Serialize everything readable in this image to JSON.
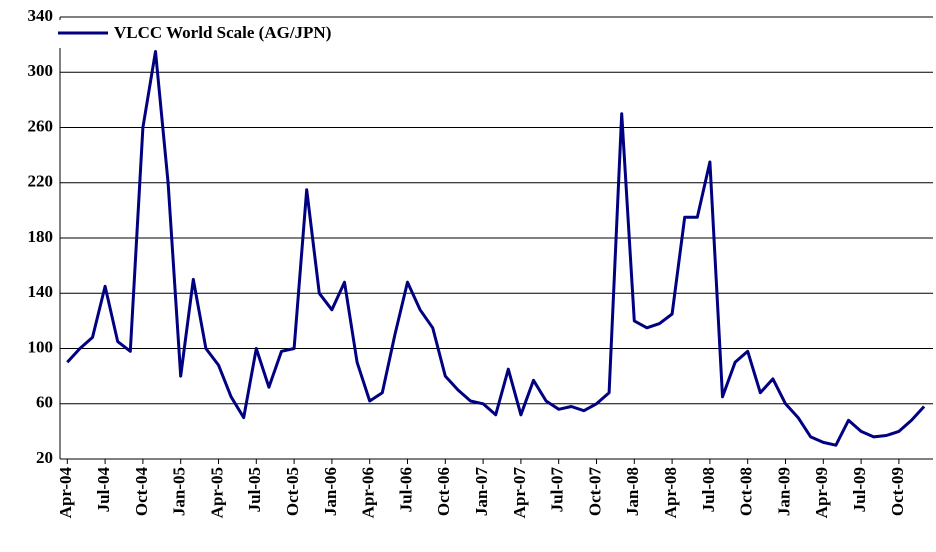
{
  "chart_data": {
    "type": "line",
    "categories": [
      "Apr-04",
      null,
      null,
      "Jul-04",
      null,
      null,
      "Oct-04",
      null,
      null,
      "Jan-05",
      null,
      null,
      "Apr-05",
      null,
      null,
      "Jul-05",
      null,
      null,
      "Oct-05",
      null,
      null,
      "Jan-06",
      null,
      null,
      "Apr-06",
      null,
      null,
      "Jul-06",
      null,
      null,
      "Oct-06",
      null,
      null,
      "Jan-07",
      null,
      null,
      "Apr-07",
      null,
      null,
      "Jul-07",
      null,
      null,
      "Oct-07",
      null,
      null,
      "Jan-08",
      null,
      null,
      "Apr-08",
      null,
      null,
      "Jul-08",
      null,
      null,
      "Oct-08",
      null,
      null,
      "Jan-09",
      null,
      null,
      "Apr-09",
      null,
      null,
      "Jul-09",
      null,
      null,
      "Oct-09",
      null,
      null
    ],
    "series": [
      {
        "name": "VLCC World Scale (AG/JPN)",
        "color": "#000080",
        "values": [
          90,
          100,
          108,
          145,
          105,
          98,
          260,
          315,
          220,
          80,
          150,
          100,
          88,
          65,
          50,
          100,
          72,
          98,
          100,
          215,
          140,
          128,
          148,
          90,
          62,
          68,
          110,
          148,
          128,
          115,
          80,
          70,
          62,
          60,
          52,
          85,
          52,
          77,
          62,
          56,
          58,
          55,
          60,
          68,
          270,
          120,
          115,
          118,
          125,
          195,
          195,
          235,
          65,
          90,
          98,
          68,
          78,
          60,
          50,
          36,
          32,
          30,
          48,
          40,
          36,
          37,
          40,
          48,
          58
        ]
      }
    ],
    "ylim": [
      20,
      340
    ],
    "yticks": [
      20,
      60,
      100,
      140,
      180,
      220,
      260,
      300,
      340
    ],
    "grid": true
  }
}
